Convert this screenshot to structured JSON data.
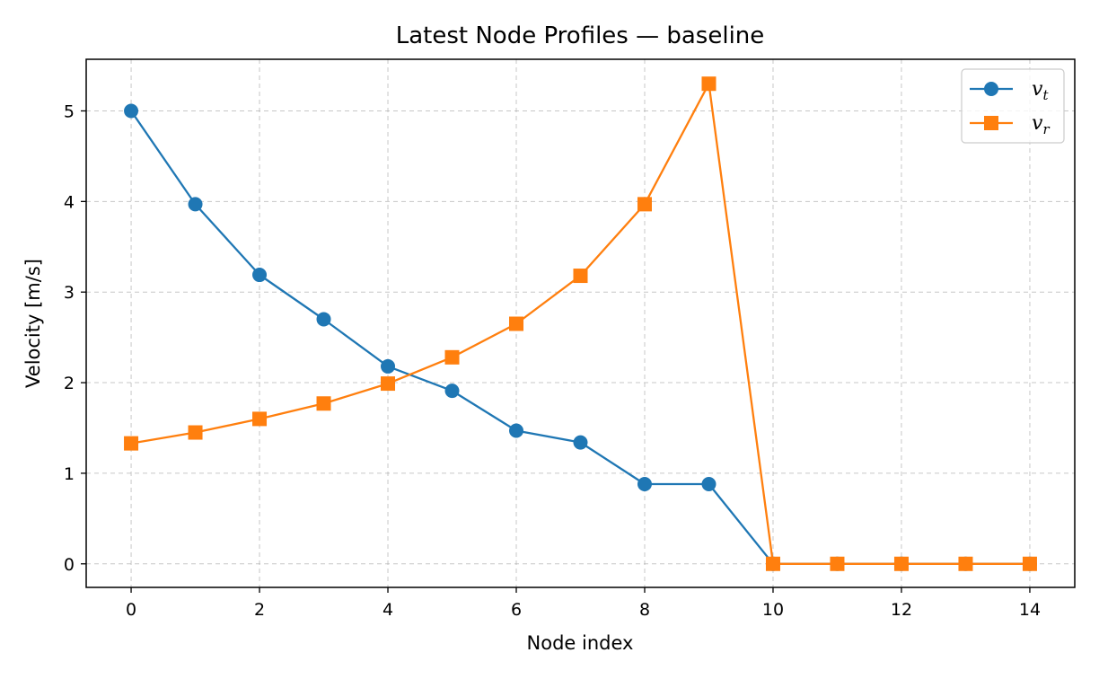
{
  "chart_data": {
    "type": "line",
    "title": "Latest Node Profiles — baseline",
    "xlabel": "Node index",
    "ylabel": "Velocity [m/s]",
    "xlim": [
      -0.7,
      14.7
    ],
    "ylim": [
      -0.26,
      5.57
    ],
    "xticks": [
      0,
      2,
      4,
      6,
      8,
      10,
      12,
      14
    ],
    "yticks": [
      0,
      1,
      2,
      3,
      4,
      5
    ],
    "xtick_labels": [
      "0",
      "2",
      "4",
      "6",
      "8",
      "10",
      "12",
      "14"
    ],
    "ytick_labels": [
      "0",
      "1",
      "2",
      "3",
      "4",
      "5"
    ],
    "grid": true,
    "legend_position": "top-right",
    "x": [
      0,
      1,
      2,
      3,
      4,
      5,
      6,
      7,
      8,
      9,
      10,
      11,
      12,
      13,
      14
    ],
    "series": [
      {
        "name": "v_t",
        "legend_main": "v",
        "legend_sub": "t",
        "color": "#1f77b4",
        "marker": "circle",
        "values": [
          5.0,
          3.97,
          3.19,
          2.7,
          2.18,
          1.91,
          1.47,
          1.34,
          0.88,
          0.88,
          0,
          0,
          0,
          0,
          0
        ]
      },
      {
        "name": "v_r",
        "legend_main": "v",
        "legend_sub": "r",
        "color": "#ff7f0e",
        "marker": "square",
        "values": [
          1.33,
          1.45,
          1.6,
          1.77,
          1.99,
          2.28,
          2.65,
          3.18,
          3.97,
          5.3,
          0,
          0,
          0,
          0,
          0
        ]
      }
    ]
  }
}
